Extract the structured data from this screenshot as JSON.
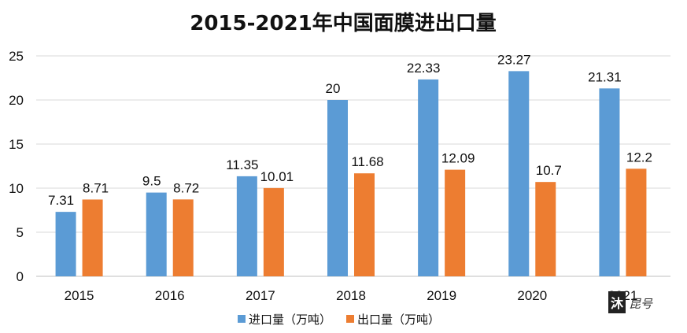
{
  "chart_data": {
    "type": "bar",
    "title": "2015-2021年中国面膜进出口量",
    "categories": [
      "2015",
      "2016",
      "2017",
      "2018",
      "2019",
      "2020",
      "2021"
    ],
    "series": [
      {
        "name": "进口量（万吨）",
        "color": "#5B9BD5",
        "values": [
          7.31,
          9.5,
          11.35,
          20,
          22.33,
          23.27,
          21.31
        ]
      },
      {
        "name": "出口量（万吨）",
        "color": "#ED7D31",
        "values": [
          8.71,
          8.72,
          10.01,
          11.68,
          12.09,
          10.7,
          12.2
        ]
      }
    ],
    "ylim": [
      0,
      25
    ],
    "yticks": [
      0,
      5,
      10,
      15,
      20,
      25
    ],
    "grid": true,
    "legend": "bottom",
    "xlabel": "",
    "ylabel": ""
  },
  "watermark": {
    "text": "沐 昆 号",
    "icon": "seal-logo"
  }
}
